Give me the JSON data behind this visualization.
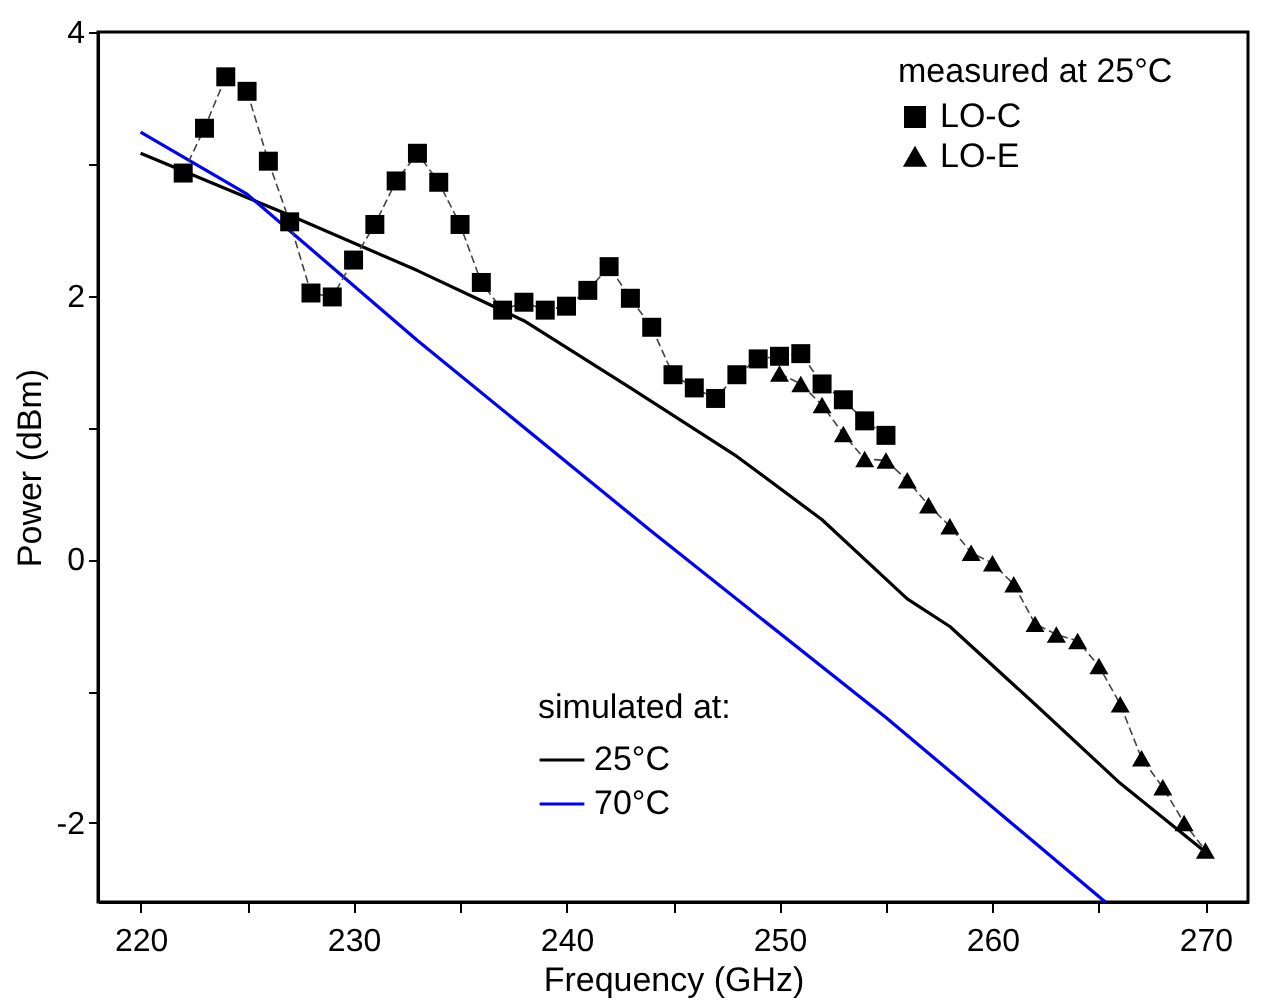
{
  "chart_data": {
    "type": "line",
    "xlabel": "Frequency (GHz)",
    "ylabel": "Power (dBm)",
    "legend_title": "measured at 25°C",
    "annotations": [
      "simulated at:"
    ],
    "xlim": [
      218,
      272
    ],
    "ylim": [
      -2.6,
      4
    ],
    "xticks": [
      220,
      {
        "value": 225,
        "label": null
      },
      230,
      {
        "value": 235,
        "label": null
      },
      240,
      {
        "value": 245,
        "label": null
      },
      250,
      {
        "value": 255,
        "label": null
      },
      260,
      {
        "value": 265,
        "label": null
      },
      270
    ],
    "yticks": [
      -2,
      {
        "value": -1,
        "label": null
      },
      0,
      {
        "value": 1,
        "label": null
      },
      2,
      {
        "value": 3,
        "label": null
      },
      4
    ],
    "grid": false,
    "legend": "top right",
    "series": [
      {
        "name": "LO-C",
        "color": "#000000",
        "marker": "square",
        "line_style": "dashed",
        "x": [
          222,
          223,
          224,
          225,
          226,
          227,
          228,
          229,
          230,
          231,
          232,
          233,
          234,
          235,
          236,
          237,
          238,
          239,
          240,
          241,
          242,
          243,
          244,
          245,
          246,
          247,
          248,
          249,
          250,
          251,
          252,
          253,
          254,
          255
        ],
        "values": [
          2.93,
          3.27,
          3.66,
          3.55,
          3.02,
          2.56,
          2.02,
          1.99,
          2.27,
          2.54,
          2.87,
          3.08,
          2.86,
          2.54,
          2.1,
          1.89,
          1.95,
          1.89,
          1.92,
          2.04,
          2.22,
          1.98,
          1.76,
          1.4,
          1.3,
          1.22,
          1.4,
          1.52,
          1.54,
          1.56,
          1.33,
          1.21,
          1.05,
          0.94
        ]
      },
      {
        "name": "LO-E",
        "color": "#000000",
        "marker": "triangle",
        "line_style": "dashed",
        "x": [
          250,
          251,
          252,
          253,
          254,
          255,
          256,
          257,
          258,
          259,
          260,
          261,
          262,
          263,
          264,
          265,
          266,
          267,
          268,
          269,
          270
        ],
        "values": [
          1.41,
          1.33,
          1.17,
          0.95,
          0.76,
          0.75,
          0.6,
          0.41,
          0.25,
          0.05,
          -0.03,
          -0.19,
          -0.49,
          -0.57,
          -0.62,
          -0.81,
          -1.1,
          -1.51,
          -1.73,
          -2.0,
          -2.21
        ]
      },
      {
        "name": "25°C",
        "color": "#000000",
        "marker": "none",
        "x": [
          220,
          227,
          233,
          238,
          243,
          248,
          252,
          256,
          258,
          262,
          266,
          270
        ],
        "values": [
          3.08,
          2.61,
          2.19,
          1.81,
          1.3,
          0.78,
          0.3,
          -0.3,
          -0.51,
          -1.1,
          -1.7,
          -2.22
        ]
      },
      {
        "name": "70°C",
        "color": "#0000ff",
        "marker": "none",
        "x": [
          220,
          225,
          233,
          244,
          255,
          265.3
        ],
        "values": [
          3.24,
          2.77,
          1.66,
          0.21,
          -1.2,
          -2.6
        ]
      }
    ]
  }
}
